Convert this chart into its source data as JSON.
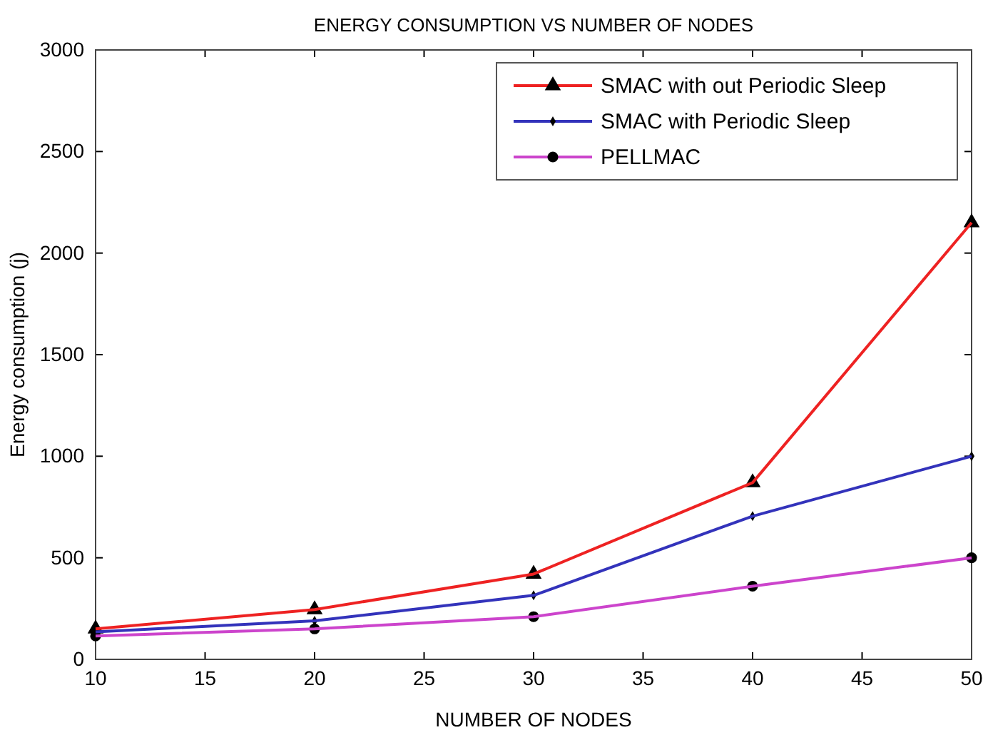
{
  "chart_data": {
    "type": "line",
    "title": "ENERGY CONSUMPTION VS NUMBER OF NODES",
    "xlabel": "NUMBER OF NODES",
    "ylabel": "Energy consumption (j)",
    "x": [
      10,
      20,
      30,
      40,
      50
    ],
    "series": [
      {
        "name": "SMAC with out Periodic Sleep",
        "color": "#ee2222",
        "marker": "triangle",
        "values": [
          150,
          245,
          420,
          870,
          2150
        ]
      },
      {
        "name": "SMAC with Periodic Sleep",
        "color": "#3333bb",
        "marker": "diamond",
        "values": [
          135,
          190,
          315,
          705,
          1000
        ]
      },
      {
        "name": "PELLMAC",
        "color": "#cc44cc",
        "marker": "circle",
        "values": [
          115,
          150,
          210,
          360,
          500
        ]
      }
    ],
    "xlim": [
      10,
      50
    ],
    "xticks": [
      10,
      15,
      20,
      25,
      30,
      35,
      40,
      45,
      50
    ],
    "ylim": [
      0,
      3000
    ],
    "yticks": [
      0,
      500,
      1000,
      1500,
      2000,
      2500,
      3000
    ],
    "grid": false,
    "legend": "top right",
    "line_style": "solid"
  }
}
